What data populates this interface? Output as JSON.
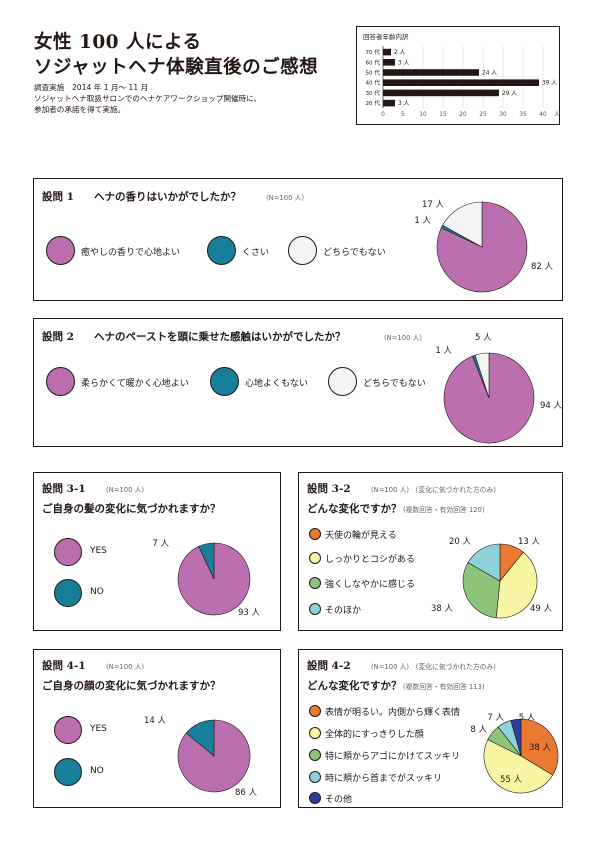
{
  "title": {
    "line1": "女性 100 人による",
    "line2": "ソジャットヘナ体験直後のご感想"
  },
  "meta": {
    "line1": "調査実施　2014 年 1 月〜 11 月",
    "line2": "ソジャットヘナ取扱サロンでのヘナケアワークショップ開催時に、",
    "line3": "参加者の承諾を得て実施。"
  },
  "colors": {
    "pink": "#bb6fae",
    "teal": "#177f99",
    "white": "#f4f4f4",
    "orange": "#ea7a31",
    "yellow": "#f8f5a4",
    "green": "#8cc57a",
    "cyan": "#8ed2d9",
    "navy": "#2f3e96"
  },
  "q1": {
    "num": "設問 1",
    "text": "ヘナの香りはいかがでしたか？",
    "note": "(N=100 人)",
    "legend": [
      "癒やしの香りで心地よい",
      "くさい",
      "どちらでもない"
    ]
  },
  "q2": {
    "num": "設問 2",
    "text": "ヘナのペーストを頭に乗せた感触はいかがでしたか？",
    "note": "(N=100 人)",
    "legend": [
      "柔らかくて暖かく心地よい",
      "心地よくもない",
      "どちらでもない"
    ]
  },
  "q31": {
    "num": "設問 3-1",
    "note": "(N=100 人)",
    "text": "ご自身の髪の変化に気づかれますか？",
    "legend": [
      "YES",
      "NO"
    ]
  },
  "q32": {
    "num": "設問 3-2",
    "note": "(N=100 人)　(変化に気づかれた方のみ)",
    "text": "どんな変化ですか？",
    "note2": "(複数回答・有効回答 120)",
    "legend": [
      "天使の輪が見える",
      "しっかりとコシがある",
      "強くしなやかに感じる",
      "そのほか"
    ]
  },
  "q41": {
    "num": "設問 4-1",
    "note": "(N=100 人)",
    "text": "ご自身の顔の変化に気づかれますか？",
    "legend": [
      "YES",
      "NO"
    ]
  },
  "q42": {
    "num": "設問 4-2",
    "note": "(N=100 人)　(変化に気づかれた方のみ)",
    "text": "どんな変化ですか？",
    "note2": "(複数回答・有効回答 113)",
    "legend": [
      "表情が明るい。内側から輝く表情",
      "全体的にすっきりした顔",
      "特に頬からアゴにかけてスッキリ",
      "時に頬から首までがスッキリ",
      "その他"
    ]
  },
  "chart_data": [
    {
      "type": "bar",
      "title": "回答者年齢内訳",
      "orientation": "horizontal",
      "categories": [
        "70 代",
        "60 代",
        "50 代",
        "40 代",
        "30 代",
        "20 代"
      ],
      "values": [
        2,
        3,
        24,
        39,
        29,
        3
      ],
      "value_labels": [
        "2 人",
        "3 人",
        "24 人",
        "39 人",
        "29 人",
        "3 人"
      ],
      "xticks": [
        "0",
        "5",
        "10",
        "15",
        "20",
        "25",
        "30",
        "35",
        "40"
      ],
      "xunit": "人",
      "xlim": [
        0,
        40
      ]
    },
    {
      "type": "pie",
      "title": "設問 1",
      "values": [
        82,
        1,
        17
      ],
      "value_labels": [
        "82 人",
        "1 人",
        "17 人"
      ],
      "colors": [
        "pink",
        "teal",
        "white"
      ]
    },
    {
      "type": "pie",
      "title": "設問 2",
      "values": [
        94,
        1,
        5
      ],
      "value_labels": [
        "94 人",
        "1 人",
        "5 人"
      ],
      "colors": [
        "pink",
        "teal",
        "white"
      ]
    },
    {
      "type": "pie",
      "title": "設問 3-1",
      "values": [
        93,
        7
      ],
      "value_labels": [
        "93 人",
        "7 人"
      ],
      "colors": [
        "pink",
        "teal"
      ]
    },
    {
      "type": "pie",
      "title": "設問 3-2",
      "values": [
        13,
        49,
        38,
        20
      ],
      "value_labels": [
        "13 人",
        "49 人",
        "38 人",
        "20 人"
      ],
      "colors": [
        "orange",
        "yellow",
        "green",
        "cyan"
      ]
    },
    {
      "type": "pie",
      "title": "設問 4-1",
      "values": [
        86,
        14
      ],
      "value_labels": [
        "86 人",
        "14 人"
      ],
      "colors": [
        "pink",
        "teal"
      ]
    },
    {
      "type": "pie",
      "title": "設問 4-2",
      "values": [
        38,
        55,
        8,
        7,
        5
      ],
      "value_labels": [
        "38 人",
        "55 人",
        "8 人",
        "7 人",
        "5 人"
      ],
      "colors": [
        "orange",
        "yellow",
        "green",
        "cyan",
        "navy"
      ]
    }
  ]
}
